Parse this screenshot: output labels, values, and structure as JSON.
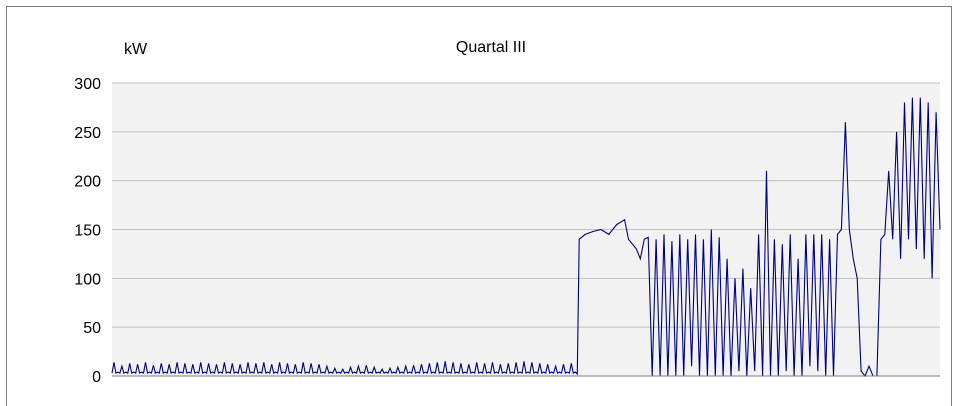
{
  "chart_data": {
    "type": "line",
    "title": "Quartal III",
    "ylabel": "kW",
    "xlabel": "",
    "ylim": [
      0,
      300
    ],
    "yticks": [
      0,
      50,
      100,
      150,
      200,
      250,
      300
    ],
    "grid": true,
    "x_unit": "sample index",
    "x_range": [
      0,
      420
    ],
    "series": [
      {
        "color": "#000080",
        "segments": [
          {
            "type": "daily_pulses",
            "from": 0,
            "to": 235,
            "period": 4,
            "base": 3,
            "peaks": [
              14,
              10,
              13,
              12,
              14,
              11,
              13,
              12,
              14,
              13,
              12,
              14,
              13,
              12,
              14,
              13,
              12,
              14,
              13,
              14,
              12,
              14,
              13,
              12,
              14,
              13,
              12,
              10,
              8,
              7,
              9,
              10,
              11,
              9,
              7,
              8,
              9,
              10,
              11,
              12,
              13,
              14,
              15,
              14,
              13,
              12,
              14,
              13,
              14,
              12,
              13,
              14,
              15,
              14,
              13,
              12,
              10,
              12,
              13,
              12
            ]
          },
          {
            "type": "events",
            "points": [
              [
                236,
                2
              ],
              [
                237,
                140
              ],
              [
                240,
                145
              ],
              [
                244,
                148
              ],
              [
                248,
                150
              ],
              [
                252,
                145
              ],
              [
                256,
                155
              ],
              [
                260,
                160
              ],
              [
                262,
                140
              ],
              [
                264,
                135
              ],
              [
                266,
                130
              ],
              [
                268,
                120
              ],
              [
                270,
                140
              ],
              [
                272,
                142
              ],
              [
                274,
                0
              ],
              [
                276,
                140
              ],
              [
                278,
                0
              ],
              [
                280,
                145
              ],
              [
                282,
                0
              ],
              [
                284,
                138
              ],
              [
                286,
                0
              ],
              [
                288,
                145
              ],
              [
                290,
                0
              ],
              [
                292,
                140
              ],
              [
                294,
                10
              ],
              [
                296,
                145
              ],
              [
                298,
                0
              ],
              [
                300,
                140
              ],
              [
                302,
                0
              ],
              [
                304,
                150
              ],
              [
                306,
                0
              ],
              [
                308,
                142
              ],
              [
                310,
                0
              ],
              [
                312,
                120
              ],
              [
                314,
                0
              ],
              [
                316,
                100
              ],
              [
                318,
                5
              ],
              [
                320,
                110
              ],
              [
                322,
                0
              ],
              [
                324,
                90
              ],
              [
                326,
                5
              ],
              [
                328,
                145
              ],
              [
                330,
                0
              ],
              [
                332,
                210
              ],
              [
                334,
                0
              ],
              [
                336,
                140
              ],
              [
                338,
                0
              ],
              [
                340,
                135
              ],
              [
                342,
                5
              ],
              [
                344,
                145
              ],
              [
                346,
                0
              ],
              [
                348,
                120
              ],
              [
                350,
                0
              ],
              [
                352,
                145
              ],
              [
                354,
                10
              ],
              [
                356,
                145
              ],
              [
                358,
                5
              ],
              [
                360,
                145
              ],
              [
                362,
                0
              ],
              [
                364,
                140
              ],
              [
                366,
                0
              ],
              [
                368,
                145
              ],
              [
                370,
                150
              ],
              [
                372,
                260
              ],
              [
                374,
                150
              ],
              [
                376,
                120
              ],
              [
                378,
                100
              ],
              [
                380,
                5
              ],
              [
                382,
                0
              ],
              [
                384,
                10
              ],
              [
                386,
                0
              ],
              [
                388,
                0
              ],
              [
                390,
                140
              ],
              [
                392,
                145
              ],
              [
                394,
                210
              ],
              [
                396,
                140
              ],
              [
                398,
                250
              ],
              [
                400,
                120
              ],
              [
                402,
                280
              ],
              [
                404,
                140
              ],
              [
                406,
                285
              ],
              [
                408,
                130
              ],
              [
                410,
                285
              ],
              [
                412,
                120
              ],
              [
                414,
                280
              ],
              [
                416,
                100
              ],
              [
                418,
                270
              ],
              [
                420,
                150
              ]
            ]
          }
        ]
      }
    ]
  }
}
